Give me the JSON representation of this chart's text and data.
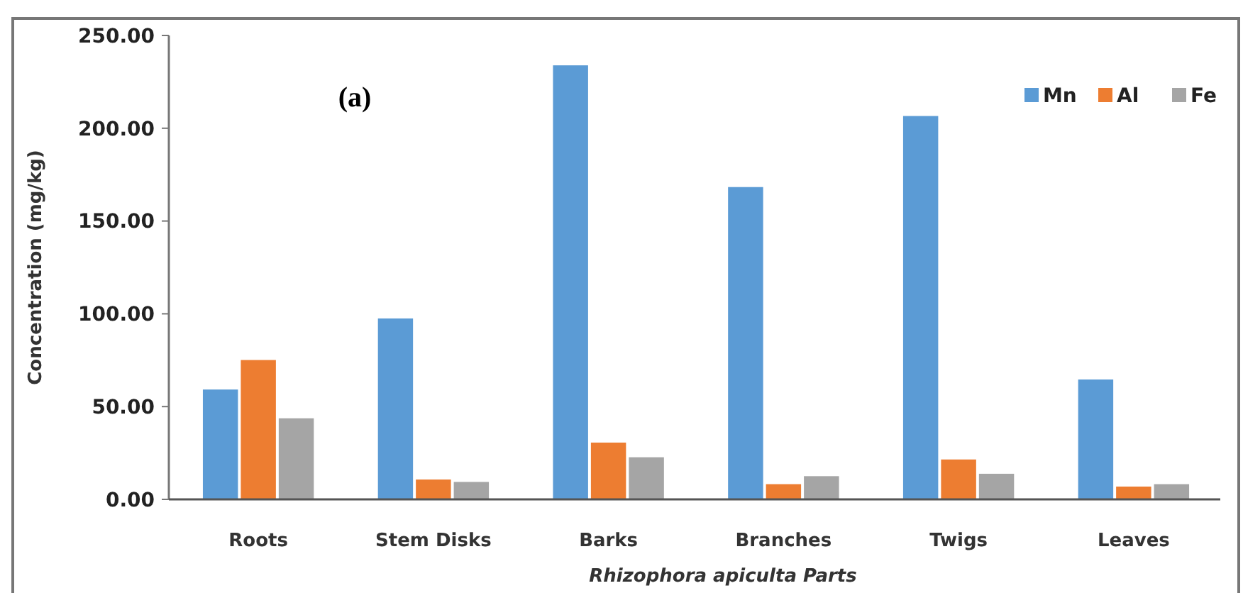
{
  "chart_data": {
    "type": "bar",
    "xlabel": "Rhizophora apiculta Parts",
    "ylabel": "Concentration (mg/kg)",
    "annotations": [
      "(a)"
    ],
    "categories": [
      "Roots",
      "Stem Disks",
      "Barks",
      "Branches",
      "Twigs",
      "Leaves"
    ],
    "series": [
      {
        "name": "Mn",
        "color": "#5b9bd5",
        "values": [
          59.2,
          97.5,
          233.9,
          168.3,
          206.6,
          64.6
        ]
      },
      {
        "name": "Al",
        "color": "#ed7d31",
        "values": [
          75.1,
          10.7,
          30.6,
          8.2,
          21.5,
          6.9
        ]
      },
      {
        "name": "Fe",
        "color": "#a5a5a5",
        "values": [
          43.7,
          9.4,
          22.7,
          12.5,
          13.8,
          8.2
        ]
      }
    ],
    "ylim": [
      0,
      250
    ],
    "yticks": [
      {
        "value": 0,
        "label": "0.00"
      },
      {
        "value": 50,
        "label": "50.00"
      },
      {
        "value": 100,
        "label": "100.00"
      },
      {
        "value": 150,
        "label": "150.00"
      },
      {
        "value": 200,
        "label": "200.00"
      },
      {
        "value": 250,
        "label": "250.00"
      }
    ],
    "grid": false,
    "legend": "top right"
  }
}
